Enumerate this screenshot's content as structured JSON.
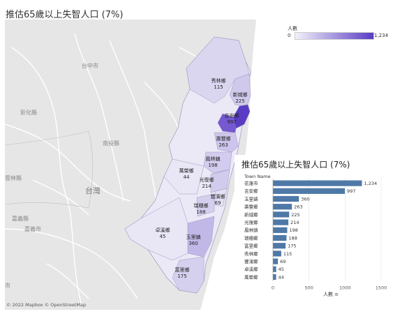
{
  "title": "推估65歲以上失智人口 (7%)",
  "map": {
    "labels": {
      "taichung": "台中市",
      "changhua": "彰化縣",
      "nantou": "南投縣",
      "yunlin": "雲林縣",
      "taiwan": "台灣",
      "chiayi_county": "嘉義縣",
      "chiayi_city": "嘉義市",
      "tainan_edge": "市"
    },
    "attribution": "© 2022 Mapbox © OpenStreetMap",
    "colors": {
      "low": "#ece9f7",
      "high": "#5a3cc4",
      "land": "#e6e6e6",
      "road": "#ffffff"
    }
  },
  "legend": {
    "title": "人數",
    "min": "0",
    "max": "1,234"
  },
  "towns": [
    {
      "name": "花蓮市",
      "value": 1234,
      "label": "1,234"
    },
    {
      "name": "吉安鄉",
      "value": 997,
      "label": "997"
    },
    {
      "name": "玉里鎮",
      "value": 360,
      "label": "360"
    },
    {
      "name": "壽豐鄉",
      "value": 263,
      "label": "263"
    },
    {
      "name": "新城鄉",
      "value": 225,
      "label": "225"
    },
    {
      "name": "光復鄉",
      "value": 214,
      "label": "214"
    },
    {
      "name": "鳳林鎮",
      "value": 198,
      "label": "198"
    },
    {
      "name": "瑞穗鄉",
      "value": 188,
      "label": "188"
    },
    {
      "name": "富里鄉",
      "value": 175,
      "label": "175"
    },
    {
      "name": "秀林鄉",
      "value": 115,
      "label": "115"
    },
    {
      "name": "豐濱鄉",
      "value": 69,
      "label": "69"
    },
    {
      "name": "卓溪鄉",
      "value": 45,
      "label": "45"
    },
    {
      "name": "萬榮鄉",
      "value": 44,
      "label": "44"
    }
  ],
  "chart_data": {
    "type": "bar",
    "title": "推估65歲以上失智人口 (7%)",
    "category_header": "Town Name",
    "xlabel": "人數",
    "xlim": [
      0,
      1500
    ],
    "xticks": [
      0,
      500,
      1000,
      1500
    ],
    "color": "#4e79a7",
    "categories": [
      "花蓮市",
      "吉安鄉",
      "玉里鎮",
      "壽豐鄉",
      "新城鄉",
      "光復鄉",
      "鳳林鎮",
      "瑞穗鄉",
      "富里鄉",
      "秀林鄉",
      "豐濱鄉",
      "卓溪鄉",
      "萬榮鄉"
    ],
    "values": [
      1234,
      997,
      360,
      263,
      225,
      214,
      198,
      188,
      175,
      115,
      69,
      45,
      44
    ],
    "value_labels": [
      "1,234",
      "997",
      "360",
      "263",
      "225",
      "214",
      "198",
      "188",
      "175",
      "115",
      "69",
      "45",
      "44"
    ]
  }
}
